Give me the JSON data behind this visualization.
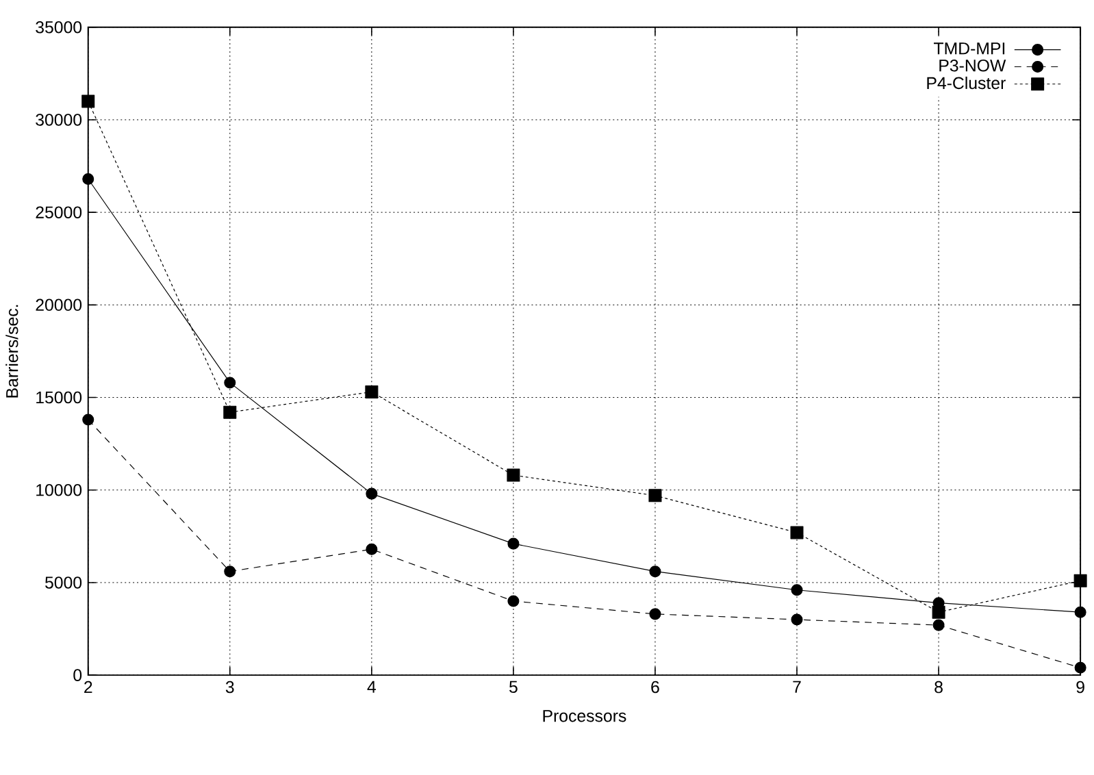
{
  "chart_data": {
    "type": "line",
    "xlabel": "Processors",
    "ylabel": "Barriers/sec.",
    "x": [
      2,
      3,
      4,
      5,
      6,
      7,
      8,
      9
    ],
    "series": [
      {
        "name": "TMD-MPI",
        "color": "#000000",
        "marker": "circle",
        "line_style": "solid",
        "values": [
          26800,
          15800,
          9800,
          7100,
          5600,
          4600,
          3900,
          3400
        ]
      },
      {
        "name": "P3-NOW",
        "color": "#000000",
        "marker": "circle",
        "line_style": "dashed",
        "values": [
          13800,
          5600,
          6800,
          4000,
          3300,
          3000,
          2700,
          400
        ]
      },
      {
        "name": "P4-Cluster",
        "color": "#000000",
        "marker": "square",
        "line_style": "dotted",
        "values": [
          31000,
          14200,
          15300,
          10800,
          9700,
          7700,
          3400,
          5100
        ]
      }
    ],
    "xlim": [
      2,
      9
    ],
    "xticks": [
      2,
      3,
      4,
      5,
      6,
      7,
      8,
      9
    ],
    "ylim": [
      0,
      35000
    ],
    "yticks": [
      0,
      5000,
      10000,
      15000,
      20000,
      25000,
      30000,
      35000
    ],
    "grid": true,
    "legend": "top right"
  }
}
